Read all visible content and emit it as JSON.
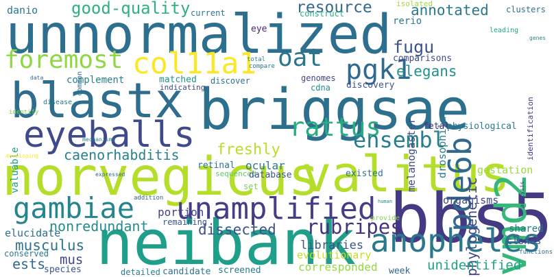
{
  "words": [
    {
      "text": "unnormalized",
      "color": "#2c6f8e"
    },
    {
      "text": "norvegicus",
      "color": "#b5de2b"
    },
    {
      "text": "valitus",
      "color": "#b5de2b"
    },
    {
      "text": "briggsae",
      "color": "#2d708e"
    },
    {
      "text": "blastx",
      "color": "#2e6d8e"
    },
    {
      "text": "neibank",
      "color": "#1f9e89"
    },
    {
      "text": "bbs5",
      "color": "#443983"
    },
    {
      "text": "vmd2",
      "color": "#35b779"
    },
    {
      "text": "pde6b",
      "color": "#31688e"
    },
    {
      "text": "eyeballs",
      "color": "#3e4a89"
    },
    {
      "text": "unamplified",
      "color": "#433e85"
    },
    {
      "text": "anopheles",
      "color": "#2a788e"
    },
    {
      "text": "gambiae",
      "color": "#25858e"
    },
    {
      "text": "foremost",
      "color": "#8fd744"
    },
    {
      "text": "col11a1",
      "color": "#fde725"
    },
    {
      "text": "oat",
      "color": "#2b758e"
    },
    {
      "text": "pgk1",
      "color": "#30698e"
    },
    {
      "text": "rattus",
      "color": "#27ad81"
    },
    {
      "text": "ensembl",
      "color": "#277f8e"
    },
    {
      "text": "rubripes",
      "color": "#46327e"
    },
    {
      "text": "fugu",
      "color": "#3b528b"
    },
    {
      "text": "elegans",
      "color": "#21918c"
    },
    {
      "text": "resource",
      "color": "#31688e"
    },
    {
      "text": "good-quality",
      "color": "#2db27d"
    },
    {
      "text": "annotated",
      "color": "#2a788e"
    },
    {
      "text": "phylogenetic",
      "color": "#3f4788"
    },
    {
      "text": "caenorhabditis",
      "color": "#26828e"
    },
    {
      "text": "musculus",
      "color": "#2c738e"
    },
    {
      "text": "nonredundant",
      "color": "#238a8d"
    },
    {
      "text": "freshly",
      "color": "#b8de29"
    },
    {
      "text": "dissected",
      "color": "#3b528b"
    },
    {
      "text": "mus",
      "color": "#404688"
    },
    {
      "text": "ests",
      "color": "#31688e"
    },
    {
      "text": "elucidate",
      "color": "#2e6e8e"
    },
    {
      "text": "libraries",
      "color": "#3b528b"
    },
    {
      "text": "unidentified",
      "color": "#1fa187"
    },
    {
      "text": "corresponded",
      "color": "#93d741"
    },
    {
      "text": "evolutionary",
      "color": "#c2df23"
    },
    {
      "text": "drosophila",
      "color": "#287c8e"
    },
    {
      "text": "melanogaster",
      "color": "#3e4989"
    },
    {
      "text": "portion",
      "color": "#414487"
    },
    {
      "text": "ocular",
      "color": "#2a778e"
    },
    {
      "text": "clones",
      "color": "#3e4c8a"
    },
    {
      "text": "shared",
      "color": "#2a788e"
    },
    {
      "text": "organisms",
      "color": "#3f4788"
    },
    {
      "text": "gestation",
      "color": "#9bd93c"
    },
    {
      "text": "fetal",
      "color": "#472c7a"
    },
    {
      "text": "physiological",
      "color": "#2a788e"
    },
    {
      "text": "danio",
      "color": "#2a788e"
    },
    {
      "text": "current",
      "color": "#2a788e"
    },
    {
      "text": "eye",
      "color": "#482475"
    },
    {
      "text": "construct",
      "color": "#28ae80"
    },
    {
      "text": "isolated",
      "color": "#9fda3a"
    },
    {
      "text": "clusters",
      "color": "#2c728e"
    },
    {
      "text": "rerio",
      "color": "#287c8e"
    },
    {
      "text": "leading",
      "color": "#21a685"
    },
    {
      "text": "identification",
      "color": "#463480"
    },
    {
      "text": "genes",
      "color": "#26828e"
    },
    {
      "text": "comparisons",
      "color": "#3e4a89"
    },
    {
      "text": "genomes",
      "color": "#414487"
    },
    {
      "text": "cdna",
      "color": "#238a8d"
    },
    {
      "text": "discovery",
      "color": "#3b528b"
    },
    {
      "text": "discover",
      "color": "#2c728e"
    },
    {
      "text": "matched",
      "color": "#21918c"
    },
    {
      "text": "indicating",
      "color": "#3e4989"
    },
    {
      "text": "complement",
      "color": "#277f8e"
    },
    {
      "text": "valuable",
      "color": "#1f9e89"
    },
    {
      "text": "common",
      "color": "#2c728e"
    },
    {
      "text": "data",
      "color": "#31688e"
    },
    {
      "text": "disease",
      "color": "#2a788e"
    },
    {
      "text": "identify",
      "color": "#7ad151"
    },
    {
      "text": "developing",
      "color": "#fde725"
    },
    {
      "text": "mechanisms",
      "color": "#26828e"
    },
    {
      "text": "total",
      "color": "#26828e"
    },
    {
      "text": "compare",
      "color": "#2a788e"
    },
    {
      "text": "retinal",
      "color": "#2c728e"
    },
    {
      "text": "sequenced",
      "color": "#5ec962"
    },
    {
      "text": "database",
      "color": "#3b528b"
    },
    {
      "text": "existed",
      "color": "#2c728e"
    },
    {
      "text": "set",
      "color": "#7ad151"
    },
    {
      "text": "expressed",
      "color": "#31688e"
    },
    {
      "text": "addition",
      "color": "#31688e"
    },
    {
      "text": "human",
      "color": "#26828e"
    },
    {
      "text": "provide",
      "color": "#84d44b"
    },
    {
      "text": "remaining",
      "color": "#3b528b"
    },
    {
      "text": "analysis",
      "color": "#443983"
    },
    {
      "text": "functions",
      "color": "#31688e"
    },
    {
      "text": "conserved",
      "color": "#2a788e"
    },
    {
      "text": "species",
      "color": "#3b528b"
    },
    {
      "text": "detailed",
      "color": "#287d8e"
    },
    {
      "text": "candidate",
      "color": "#2c728e"
    },
    {
      "text": "screened",
      "color": "#2a788e"
    },
    {
      "text": "week",
      "color": "#31688e"
    }
  ]
}
